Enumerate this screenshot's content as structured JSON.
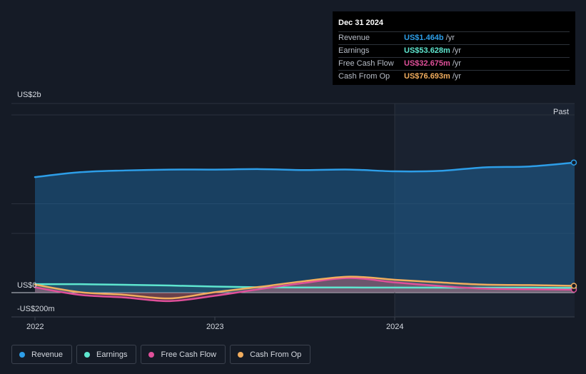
{
  "tooltip": {
    "date": "Dec 31 2024",
    "rows": [
      {
        "label": "Revenue",
        "value": "US$1.464b",
        "unit": "/yr",
        "color": "#2d9ee8"
      },
      {
        "label": "Earnings",
        "value": "US$53.628m",
        "unit": "/yr",
        "color": "#5ee6cf"
      },
      {
        "label": "Free Cash Flow",
        "value": "US$32.675m",
        "unit": "/yr",
        "color": "#e0509a"
      },
      {
        "label": "Cash From Op",
        "value": "US$76.693m",
        "unit": "/yr",
        "color": "#f1ad5e"
      }
    ]
  },
  "past_label": "Past",
  "legend": [
    {
      "label": "Revenue",
      "color": "#2d9ee8"
    },
    {
      "label": "Earnings",
      "color": "#5ee6cf"
    },
    {
      "label": "Free Cash Flow",
      "color": "#e0509a"
    },
    {
      "label": "Cash From Op",
      "color": "#f1ad5e"
    }
  ],
  "chart_data": {
    "type": "area",
    "y_tick_labels": [
      "US$2b",
      "US$0",
      "-US$200m"
    ],
    "x_tick_labels": [
      "2022",
      "2023",
      "2024"
    ],
    "x_ticks": [
      2022.0,
      2023.0,
      2024.0
    ],
    "ylim": [
      -200,
      2000
    ],
    "y_unit": "US$m",
    "xlim": [
      2021.88,
      2025.0
    ],
    "series": [
      {
        "name": "Revenue",
        "color": "#2d9ee8",
        "x": [
          2022.0,
          2022.25,
          2022.5,
          2022.75,
          2023.0,
          2023.25,
          2023.5,
          2023.75,
          2024.0,
          2024.25,
          2024.5,
          2024.75,
          2025.0
        ],
        "values": [
          1300,
          1355,
          1375,
          1385,
          1385,
          1390,
          1380,
          1385,
          1365,
          1370,
          1410,
          1420,
          1464
        ]
      },
      {
        "name": "Earnings",
        "color": "#5ee6cf",
        "x": [
          2022.0,
          2022.25,
          2022.5,
          2022.75,
          2023.0,
          2023.25,
          2023.5,
          2023.75,
          2024.0,
          2024.25,
          2024.5,
          2024.75,
          2025.0
        ],
        "values": [
          95,
          95,
          88,
          80,
          68,
          60,
          58,
          58,
          57,
          56,
          55,
          55,
          53.628
        ]
      },
      {
        "name": "Free Cash Flow",
        "color": "#e0509a",
        "x": [
          2022.0,
          2022.25,
          2022.5,
          2022.75,
          2023.0,
          2023.25,
          2023.5,
          2023.75,
          2024.0,
          2024.25,
          2024.5,
          2024.75,
          2025.0
        ],
        "values": [
          60,
          -25,
          -55,
          -95,
          -35,
          40,
          110,
          165,
          115,
          75,
          45,
          38,
          32.675
        ]
      },
      {
        "name": "Cash From Op",
        "color": "#f1ad5e",
        "x": [
          2022.0,
          2022.25,
          2022.5,
          2022.75,
          2023.0,
          2023.25,
          2023.5,
          2023.75,
          2024.0,
          2024.25,
          2024.5,
          2024.75,
          2025.0
        ],
        "values": [
          90,
          5,
          -25,
          -65,
          5,
          65,
          130,
          180,
          145,
          115,
          90,
          85,
          76.693
        ]
      }
    ]
  }
}
